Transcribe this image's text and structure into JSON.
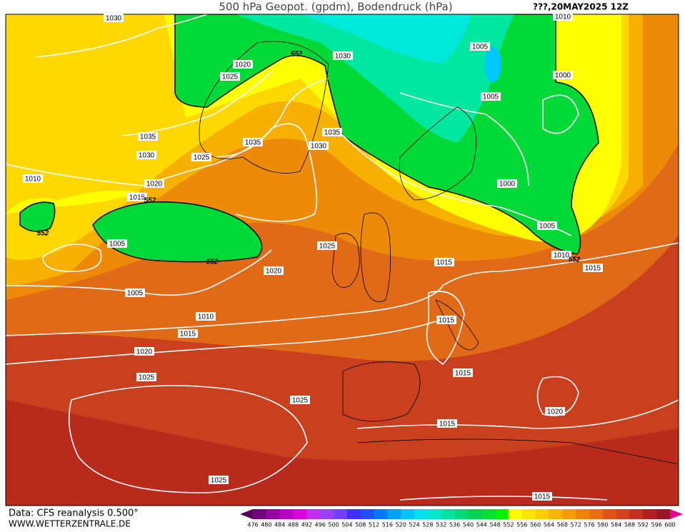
{
  "header": {
    "title": "500 hPa Geopot. (gpdm), Bodendruck (hPa)",
    "run": "???,20MAY2025  12Z"
  },
  "footer": {
    "source": "Data: CFS reanalysis 0.500°",
    "site": "WWW.WETTERZENTRALE.DE"
  },
  "map": {
    "isobar_labels": [
      "1030",
      "1020",
      "1025",
      "1030",
      "1005",
      "1010",
      "1000",
      "1005",
      "1035",
      "1030",
      "1025",
      "1035",
      "1035",
      "1030",
      "1010",
      "1020",
      "1015",
      "1005",
      "1025",
      "1000",
      "1005",
      "1010",
      "1015",
      "1015",
      "1020",
      "1005",
      "1010",
      "1015",
      "1015",
      "1020",
      "1015",
      "1025",
      "1025",
      "1020",
      "1015",
      "1025",
      "1015"
    ],
    "contour_labels": [
      "552",
      "552",
      "552",
      "552",
      "552"
    ]
  },
  "colorbar": {
    "labels": [
      "476",
      "480",
      "484",
      "488",
      "492",
      "496",
      "500",
      "504",
      "508",
      "512",
      "516",
      "520",
      "524",
      "528",
      "532",
      "536",
      "540",
      "544",
      "548",
      "552",
      "556",
      "560",
      "564",
      "568",
      "572",
      "576",
      "580",
      "584",
      "588",
      "592",
      "596",
      "600"
    ],
    "colors": [
      "#50005a",
      "#74007e",
      "#9600a0",
      "#b800c0",
      "#dc00dc",
      "#c030f0",
      "#9c40ff",
      "#7040ff",
      "#4030ff",
      "#2050ff",
      "#0078ff",
      "#00a0ff",
      "#00c4ff",
      "#00e0f0",
      "#00e8c8",
      "#00e0a0",
      "#00d878",
      "#00d050",
      "#00e030",
      "#00f000",
      "#ffff00",
      "#ffe400",
      "#ffcc00",
      "#ffb400",
      "#f89c00",
      "#f08400",
      "#e86c10",
      "#e05418",
      "#d44020",
      "#c43020",
      "#b02020",
      "#9c1420",
      "#e0008c"
    ]
  }
}
